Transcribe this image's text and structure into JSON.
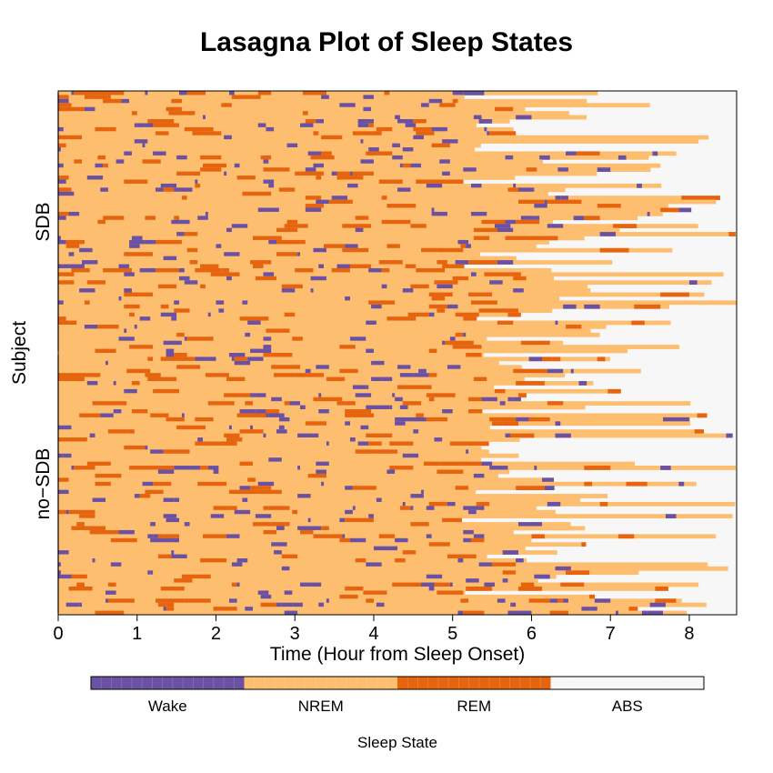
{
  "chart_data": {
    "type": "heatmap",
    "title": "Lasagna Plot of Sleep States",
    "xlabel": "Time (Hour from Sleep Onset)",
    "ylabel": "Subject",
    "xlim": [
      0,
      8.6
    ],
    "x_ticks": [
      "0",
      "1",
      "2",
      "3",
      "4",
      "5",
      "6",
      "7",
      "8"
    ],
    "groups": [
      {
        "label": "SDB",
        "row_fraction": 0.5
      },
      {
        "label": "no−SDB",
        "row_fraction": 0.5
      }
    ],
    "subject_count": 130,
    "epoch_minutes": 2,
    "pattern": "stochastic sleep-state sequences per subject; rows end between about 5.1 and 8.6 hours, remainder ABS",
    "states": [
      {
        "name": "Wake",
        "color": "#6a51a3"
      },
      {
        "name": "NREM",
        "color": "#fdbe6f"
      },
      {
        "name": "REM",
        "color": "#e6640e"
      },
      {
        "name": "ABS",
        "color": "#f7f7f7"
      }
    ],
    "legend": {
      "title": "Sleep State",
      "position": "bottom"
    }
  }
}
